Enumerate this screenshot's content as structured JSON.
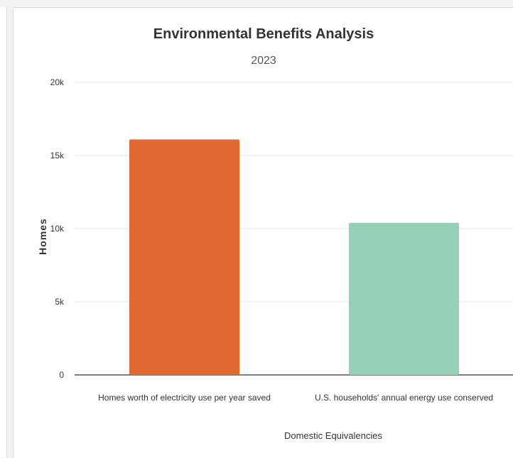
{
  "chart_data": {
    "type": "bar",
    "title": "Environmental Benefits Analysis",
    "subtitle": "2023",
    "xlabel": "Domestic Equivalencies",
    "ylabel": "Homes",
    "categories": [
      "Homes worth of electricity use per year saved",
      "U.S. households' annual energy use conserved"
    ],
    "values": [
      16100,
      10400
    ],
    "bar_colors": [
      "#e06a31",
      "#96d0b6"
    ],
    "ylim": [
      0,
      20000
    ],
    "yticks": [
      0,
      5000,
      10000,
      15000,
      20000
    ],
    "ytick_labels": [
      "0",
      "5k",
      "10k",
      "15k",
      "20k"
    ],
    "grid": true,
    "legend": "none"
  }
}
